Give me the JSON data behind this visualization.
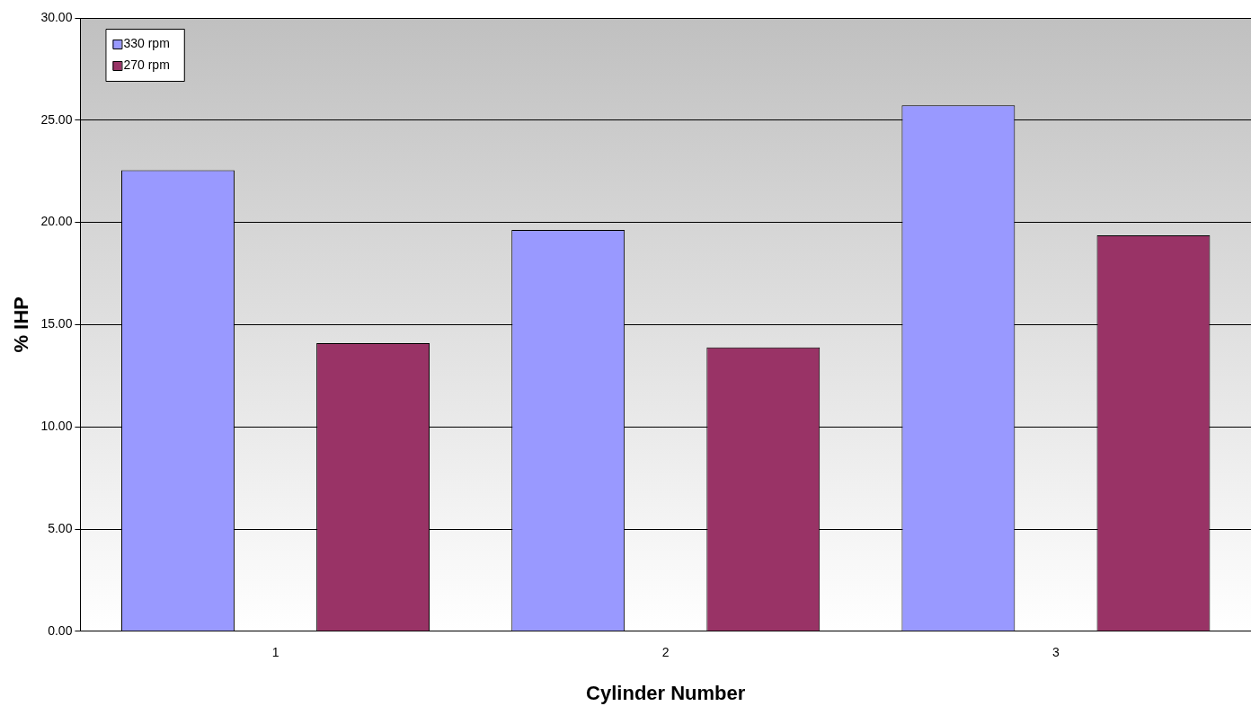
{
  "chart_data": {
    "type": "bar",
    "xlabel": "Cylinder Number",
    "ylabel": "% IHP",
    "categories": [
      "1",
      "2",
      "3"
    ],
    "series": [
      {
        "name": "330 rpm",
        "color": "#9999ff",
        "values": [
          22.55,
          19.63,
          25.73
        ]
      },
      {
        "name": "270 rpm",
        "color": "#993366",
        "values": [
          14.1,
          13.89,
          19.37
        ]
      }
    ],
    "ylim": [
      0,
      30
    ],
    "yticks": [
      {
        "value": 0,
        "label": "0.00"
      },
      {
        "value": 5,
        "label": "5.00"
      },
      {
        "value": 10,
        "label": "10.00"
      },
      {
        "value": 15,
        "label": "15.00"
      },
      {
        "value": 20,
        "label": "20.00"
      },
      {
        "value": 25,
        "label": "25.00"
      },
      {
        "value": 30,
        "label": "30.00"
      }
    ],
    "grid": "y",
    "legend": "top left"
  }
}
